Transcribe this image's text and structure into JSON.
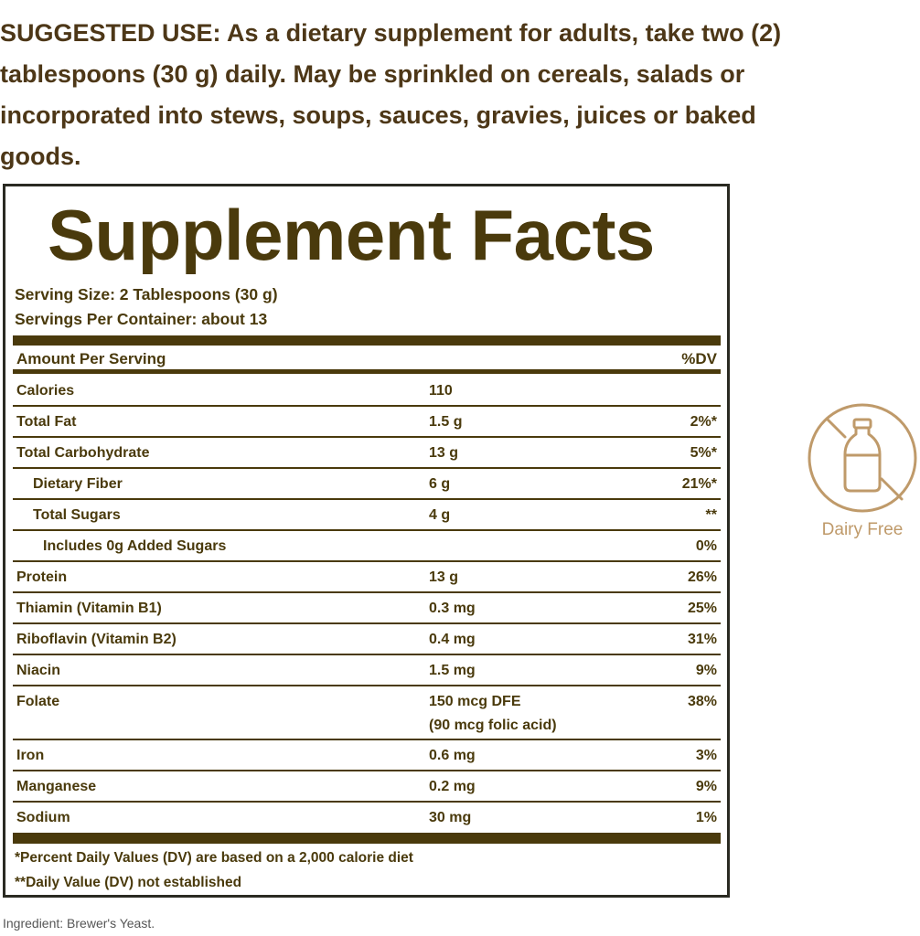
{
  "suggested_use": "SUGGESTED USE: As a dietary supplement for adults, take two (2) tablespoons (30 g) daily. May be sprinkled on cereals, salads or incorporated into stews, soups, sauces, gravies, juices or baked goods.",
  "facts": {
    "title": "Supplement Facts",
    "serving_size": "Serving Size: 2 Tablespoons (30 g)",
    "servings_per_container": "Servings Per Container: about 13",
    "header": {
      "name": "Amount Per Serving",
      "dv": "%DV"
    },
    "rows": [
      {
        "name": "Calories",
        "amount": "110",
        "dv": ""
      },
      {
        "name": "Total Fat",
        "amount": "1.5 g",
        "dv": "2%*"
      },
      {
        "name": "Total Carbohydrate",
        "amount": "13 g",
        "dv": "5%*"
      },
      {
        "name": "Dietary Fiber",
        "amount": "6 g",
        "dv": "21%*",
        "indent": 1
      },
      {
        "name": "Total Sugars",
        "amount": "4 g",
        "dv": "**",
        "indent": 1
      },
      {
        "name": "Includes 0g Added Sugars",
        "amount": "",
        "dv": "0%",
        "indent": 2
      },
      {
        "name": "Protein",
        "amount": "13 g",
        "dv": "26%"
      },
      {
        "name": "Thiamin (Vitamin B1)",
        "amount": "0.3 mg",
        "dv": "25%"
      },
      {
        "name": "Riboflavin (Vitamin B2)",
        "amount": "0.4 mg",
        "dv": "31%"
      },
      {
        "name": "Niacin",
        "amount": "1.5 mg",
        "dv": "9%"
      },
      {
        "name": "Folate",
        "amount": "150 mcg DFE",
        "amount_note": "(90 mcg folic acid)",
        "dv": "38%"
      },
      {
        "name": "Iron",
        "amount": "0.6 mg",
        "dv": "3%"
      },
      {
        "name": "Manganese",
        "amount": "0.2 mg",
        "dv": "9%"
      },
      {
        "name": "Sodium",
        "amount": "30 mg",
        "dv": "1%"
      }
    ],
    "footnotes": [
      "*Percent Daily Values (DV) are based on a 2,000 calorie diet",
      "**Daily Value (DV) not established"
    ]
  },
  "ingredient": "Ingredient: Brewer's Yeast.",
  "badge": {
    "label": "Dairy Free",
    "icon": "no-milk-bottle-icon",
    "color": "#bf9a6a"
  },
  "colors": {
    "label_text": "#4a3a0c",
    "use_text": "#4d3717"
  }
}
